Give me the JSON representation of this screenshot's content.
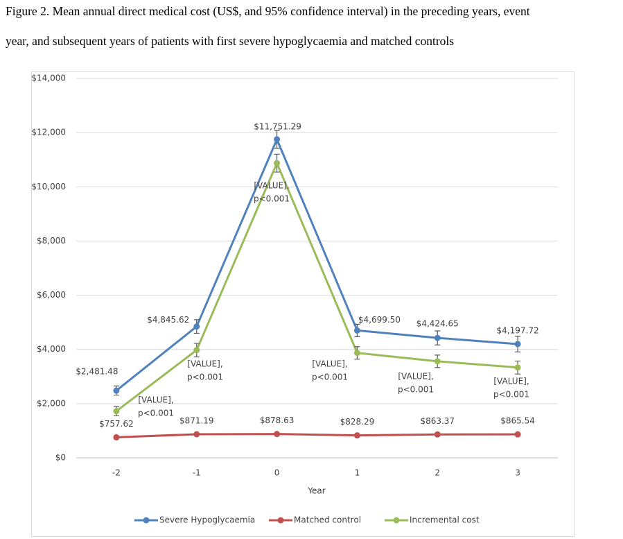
{
  "chart_data": {
    "type": "line",
    "title": [
      "Figure 2. Mean annual direct medical cost (US$, and 95% confidence interval) in the preceding years, event",
      "year, and subsequent years of patients with first severe hypoglycaemia and matched controls"
    ],
    "x_label": "Year",
    "categories": [
      "-2",
      "-1",
      "0",
      "1",
      "2",
      "3"
    ],
    "series": [
      {
        "name": "Severe Hypoglycaemia",
        "color": "#4f81bd",
        "values": [
          2481.48,
          4845.62,
          11751.29,
          4699.5,
          4424.65,
          4197.72
        ],
        "errors": [
          170,
          250,
          330,
          230,
          260,
          290
        ],
        "value_labels": [
          "$2,481.48",
          "$4,845.62",
          "$11,751.29",
          "$4,699.50",
          "$4,424.65",
          "$4,197.72"
        ]
      },
      {
        "name": "Matched control",
        "color": "#c0504d",
        "values": [
          757.62,
          871.19,
          878.63,
          828.29,
          863.37,
          865.54
        ],
        "value_labels": [
          "$757.62",
          "$871.19",
          "$878.63",
          "$828.29",
          "$863.37",
          "$865.54"
        ]
      },
      {
        "name": "Incremental cost",
        "color": "#9bbb59",
        "values": [
          1723.86,
          3974.43,
          10872.66,
          3871.21,
          3561.28,
          3332.18
        ],
        "errors": [
          170,
          250,
          330,
          230,
          230,
          240
        ]
      }
    ],
    "annotations": [
      [
        "[VALUE],",
        "p<0.001"
      ],
      [
        "[VALUE],",
        "p<0.001"
      ],
      [
        "[VALUE],",
        "p<0.001"
      ],
      [
        "[VALUE],",
        "p<0.001"
      ],
      [
        "[VALUE],",
        "p<0.001"
      ],
      [
        "[VALUE],",
        "p<0.001"
      ]
    ],
    "ylim": [
      0,
      14000
    ],
    "yticks": [
      {
        "value": 0,
        "label": "$0"
      },
      {
        "value": 2000,
        "label": "$2,000"
      },
      {
        "value": 4000,
        "label": "$4,000"
      },
      {
        "value": 6000,
        "label": "$6,000"
      },
      {
        "value": 8000,
        "label": "$8,000"
      },
      {
        "value": 10000,
        "label": "$10,000"
      },
      {
        "value": 12000,
        "label": "$12,000"
      },
      {
        "value": 14000,
        "label": "$14,000"
      }
    ],
    "grid": true,
    "legend": "bottom"
  }
}
